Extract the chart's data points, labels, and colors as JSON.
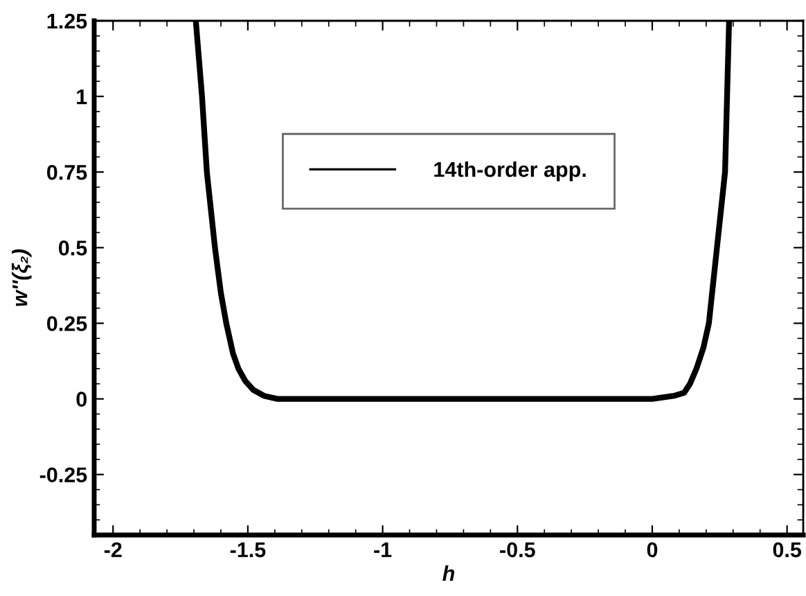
{
  "chart_data": {
    "type": "line",
    "xlabel": "h",
    "ylabel": "w''(ξ₂)",
    "series": [
      {
        "name": "14th-order app.",
        "color": "#000000",
        "x": [
          -1.693,
          -1.67,
          -1.652,
          -1.622,
          -1.6,
          -1.58,
          -1.555,
          -1.535,
          -1.51,
          -1.48,
          -1.44,
          -1.39,
          -1.3,
          -1.0,
          -0.5,
          0.0,
          0.04,
          0.08,
          0.118,
          0.14,
          0.164,
          0.19,
          0.21,
          0.24,
          0.27,
          0.285
        ],
        "values": [
          1.25,
          1.0,
          0.75,
          0.5,
          0.35,
          0.25,
          0.15,
          0.1,
          0.06,
          0.03,
          0.01,
          0.0,
          0.0,
          0.0,
          0.0,
          0.0,
          0.005,
          0.01,
          0.02,
          0.05,
          0.1,
          0.17,
          0.25,
          0.5,
          0.75,
          1.25
        ]
      }
    ],
    "xlim": [
      -2.07,
      0.56
    ],
    "ylim": [
      -0.45,
      1.25
    ],
    "xticks": [
      -2,
      -1.5,
      -1,
      -0.5,
      0,
      0.5
    ],
    "yticks": [
      -0.25,
      0,
      0.25,
      0.5,
      0.75,
      1,
      1.25
    ],
    "legend": "upper center",
    "grid": false,
    "marker": "none",
    "line_style": "solid"
  }
}
